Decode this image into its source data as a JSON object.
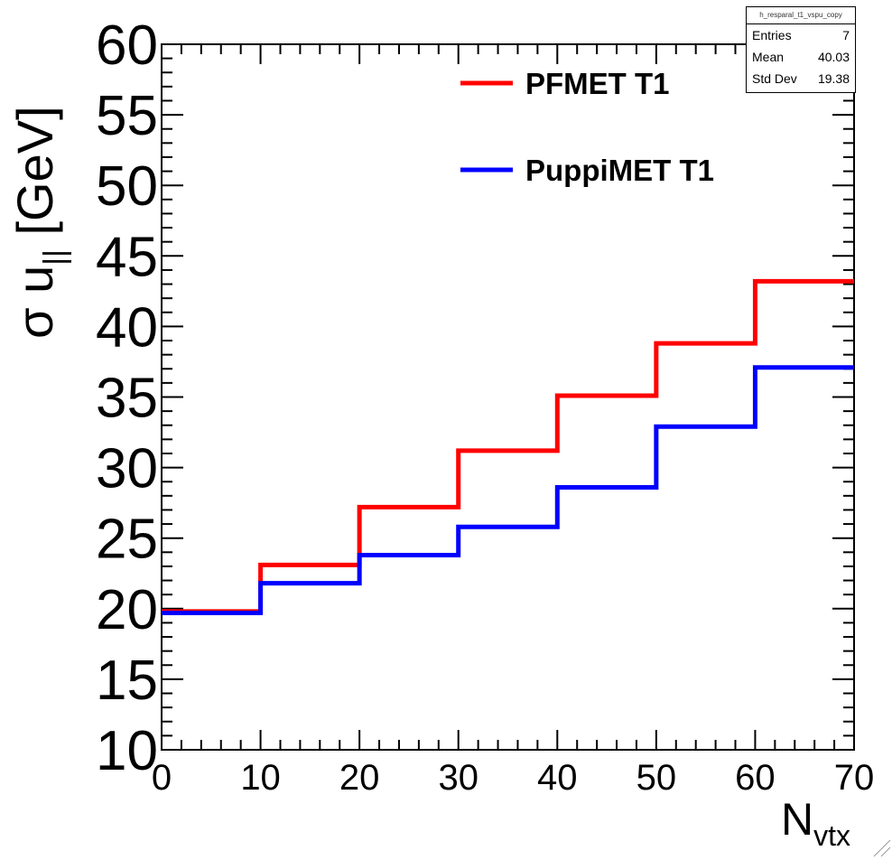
{
  "chart_data": {
    "type": "line",
    "style": "step-histogram",
    "xlabel": "N",
    "xlabel_sub": "vtx",
    "ylabel": "σ u",
    "ylabel_sub": "||",
    "ylabel_unit": "[GeV]",
    "xlim": [
      0,
      70
    ],
    "ylim": [
      10,
      60
    ],
    "xticks": [
      "0",
      "10",
      "20",
      "30",
      "40",
      "50",
      "60",
      "70"
    ],
    "yticks": [
      "10",
      "15",
      "20",
      "25",
      "30",
      "35",
      "40",
      "45",
      "50",
      "55",
      "60"
    ],
    "bin_edges": [
      0,
      10,
      20,
      30,
      40,
      50,
      60,
      70
    ],
    "grid": false,
    "legend_position": "top",
    "series": [
      {
        "name": "PFMET T1",
        "color": "#ff0000",
        "values": [
          19.8,
          23.1,
          27.2,
          31.2,
          35.1,
          38.8,
          43.2
        ]
      },
      {
        "name": "PuppiMET T1",
        "color": "#0000ff",
        "values": [
          19.7,
          21.8,
          23.8,
          25.8,
          28.6,
          32.9,
          37.1
        ]
      }
    ]
  },
  "stats_box": {
    "title": "h_resparal_t1_vspu_copy",
    "rows": [
      {
        "label": "Entries",
        "value": "7"
      },
      {
        "label": "Mean",
        "value": "40.03"
      },
      {
        "label": "Std Dev",
        "value": "19.38"
      }
    ]
  }
}
